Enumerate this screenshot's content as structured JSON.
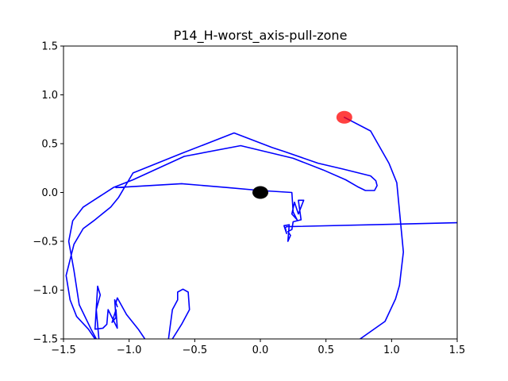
{
  "chart_data": {
    "type": "line",
    "title": "P14_H-worst_axis-pull-zone",
    "xlabel": "",
    "ylabel": "",
    "xlim": [
      -1.5,
      1.5
    ],
    "ylim": [
      -1.5,
      1.5
    ],
    "x_ticks": [
      "−1.5",
      "−1.0",
      "−0.5",
      "0.0",
      "0.5",
      "1.0",
      "1.5"
    ],
    "y_ticks": [
      "−1.5",
      "−1.0",
      "−0.5",
      "0.0",
      "0.5",
      "1.0",
      "1.5"
    ],
    "grid": false,
    "colors": {
      "trajectory": "#0000ff",
      "start": "#ff0000",
      "origin": "#000000"
    },
    "series": [
      {
        "values": [
          [
            0.64,
            0.77
          ],
          [
            0.84,
            0.63
          ],
          [
            0.98,
            0.3
          ],
          [
            1.04,
            0.1
          ],
          [
            1.09,
            -0.61
          ],
          [
            1.06,
            -0.95
          ],
          [
            1.03,
            -1.09
          ],
          [
            0.95,
            -1.32
          ],
          [
            0.76,
            -1.5
          ],
          [
            null,
            null
          ],
          [
            -0.7,
            -1.5
          ],
          [
            -0.69,
            -1.4
          ],
          [
            -0.67,
            -1.2
          ],
          [
            -0.63,
            -1.1
          ],
          [
            -0.63,
            -1.02
          ],
          [
            -0.59,
            -0.99
          ],
          [
            -0.55,
            -1.02
          ],
          [
            -0.54,
            -1.2
          ],
          [
            -0.6,
            -1.35
          ],
          [
            -0.67,
            -1.5
          ],
          [
            null,
            null
          ],
          [
            -0.88,
            -1.5
          ],
          [
            -0.93,
            -1.4
          ],
          [
            -1.02,
            -1.25
          ],
          [
            -1.09,
            -1.08
          ],
          [
            -1.1,
            -1.13
          ],
          [
            -1.09,
            -1.17
          ],
          [
            -1.11,
            -1.1
          ],
          [
            -1.1,
            -1.28
          ],
          [
            -1.13,
            -1.33
          ],
          [
            -1.1,
            -1.2
          ],
          [
            -1.09,
            -1.39
          ],
          [
            -1.16,
            -1.2
          ],
          [
            -1.17,
            -1.35
          ],
          [
            -1.2,
            -1.39
          ],
          [
            -1.26,
            -1.4
          ],
          [
            -1.24,
            -0.96
          ],
          [
            -1.22,
            -1.05
          ],
          [
            -1.25,
            -1.2
          ],
          [
            -1.23,
            -1.5
          ],
          [
            null,
            null
          ],
          [
            -1.26,
            -1.5
          ],
          [
            -1.31,
            -1.4
          ],
          [
            -1.4,
            -1.27
          ],
          [
            -1.45,
            -1.1
          ],
          [
            -1.48,
            -0.85
          ],
          [
            -1.42,
            -0.53
          ],
          [
            -1.35,
            -0.37
          ],
          [
            -1.27,
            -0.29
          ],
          [
            -1.14,
            -0.15
          ],
          [
            -1.08,
            -0.05
          ],
          [
            -0.97,
            0.2
          ],
          [
            -0.6,
            0.4
          ],
          [
            -0.2,
            0.61
          ],
          [
            0.09,
            0.46
          ],
          [
            0.18,
            0.42
          ],
          [
            0.44,
            0.3
          ],
          [
            0.63,
            0.24
          ],
          [
            0.84,
            0.17
          ],
          [
            0.88,
            0.12
          ],
          [
            0.89,
            0.07
          ],
          [
            0.87,
            0.02
          ],
          [
            0.8,
            0.02
          ],
          [
            0.74,
            0.06
          ],
          [
            0.65,
            0.13
          ],
          [
            0.48,
            0.23
          ],
          [
            0.25,
            0.35
          ],
          [
            -0.15,
            0.48
          ],
          [
            -0.58,
            0.37
          ],
          [
            -0.97,
            0.13
          ],
          [
            -1.12,
            0.05
          ],
          [
            -1.35,
            -0.15
          ],
          [
            -1.43,
            -0.29
          ],
          [
            -1.46,
            -0.5
          ],
          [
            -1.42,
            -0.8
          ],
          [
            -1.38,
            -1.15
          ],
          [
            -1.29,
            -1.4
          ],
          [
            -1.25,
            -1.5
          ],
          [
            null,
            null
          ],
          [
            -1.1,
            0.05
          ],
          [
            -0.6,
            0.09
          ],
          [
            -0.25,
            0.05
          ],
          [
            0.0,
            0.02
          ],
          [
            0.24,
            0.0
          ],
          [
            0.25,
            -0.2
          ],
          [
            0.28,
            -0.28
          ],
          [
            0.24,
            -0.22
          ],
          [
            0.26,
            -0.1
          ],
          [
            0.29,
            -0.22
          ],
          [
            0.33,
            -0.08
          ],
          [
            0.29,
            -0.08
          ],
          [
            0.31,
            -0.28
          ],
          [
            0.25,
            -0.3
          ],
          [
            0.24,
            -0.38
          ],
          [
            0.21,
            -0.4
          ],
          [
            0.23,
            -0.44
          ],
          [
            0.21,
            -0.5
          ],
          [
            0.22,
            -0.33
          ],
          [
            0.18,
            -0.34
          ],
          [
            0.2,
            -0.42
          ],
          [
            0.19,
            -0.36
          ],
          [
            0.2,
            -0.35
          ],
          [
            1.5,
            -0.31
          ]
        ]
      }
    ],
    "markers": [
      {
        "label": "start",
        "x": 0.64,
        "y": 0.77,
        "color": "#ff0000"
      },
      {
        "label": "origin",
        "x": 0.0,
        "y": 0.0,
        "color": "#000000"
      }
    ]
  }
}
